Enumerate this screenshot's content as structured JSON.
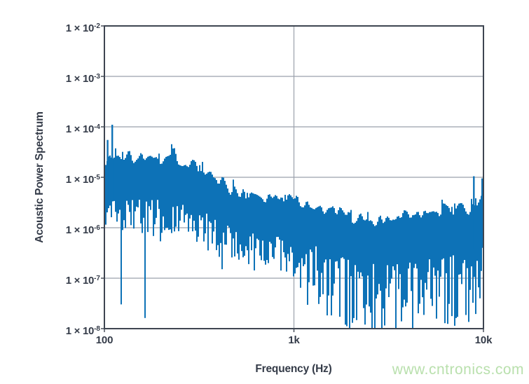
{
  "watermark": {
    "text": "www.cntronics.com",
    "color": "#b9e0ad"
  },
  "colors": {
    "series_blue": "#0d72b7",
    "text": "#343b48",
    "axis_border": "#3e4551",
    "gridline": "#9ba1ac",
    "background": "#ffffff"
  },
  "chart_data": {
    "type": "line",
    "subtype": "noisy-power-spectrum",
    "title": "",
    "xlabel": "Frequency (Hz)",
    "ylabel": "Acoustic Power Spectrum",
    "x_scale": "log",
    "y_scale": "log",
    "xlim": [
      100,
      10000
    ],
    "ylim": [
      1e-08,
      0.01
    ],
    "grid": true,
    "legend": false,
    "x_ticks": [
      {
        "value": 100,
        "label": "100"
      },
      {
        "value": 1000,
        "label": "1k"
      },
      {
        "value": 10000,
        "label": "10k"
      }
    ],
    "y_ticks": [
      {
        "value": 0.01,
        "label": "1 × 10",
        "exp": "-2"
      },
      {
        "value": 0.001,
        "label": "1 × 10",
        "exp": "-3"
      },
      {
        "value": 0.0001,
        "label": "1 × 10",
        "exp": "-4"
      },
      {
        "value": 1e-05,
        "label": "1 × 10",
        "exp": "-5"
      },
      {
        "value": 1e-06,
        "label": "1 × 10",
        "exp": "-6"
      },
      {
        "value": 1e-07,
        "label": "1 × 10",
        "exp": "-7"
      },
      {
        "value": 1e-08,
        "label": "1 × 10",
        "exp": "-8"
      }
    ],
    "series": [
      {
        "name": "acoustic-power-spectrum",
        "color": "#0d72b7",
        "envelope": [
          {
            "f": 100,
            "hi": 2.4e-05,
            "lo": 3.4e-06,
            "floor": 6.5e-07,
            "spike_p": 0.1
          },
          {
            "f": 150,
            "hi": 2.7e-05,
            "lo": 3.6e-06,
            "floor": 6e-07,
            "spike_p": 0.11
          },
          {
            "f": 230,
            "hi": 2.8e-05,
            "lo": 3.6e-06,
            "floor": 6e-07,
            "spike_p": 0.12
          },
          {
            "f": 300,
            "hi": 2e-05,
            "lo": 2.8e-06,
            "floor": 4.5e-07,
            "spike_p": 0.12
          },
          {
            "f": 400,
            "hi": 7.5e-06,
            "lo": 1.3e-06,
            "floor": 2e-07,
            "spike_p": 0.13
          },
          {
            "f": 550,
            "hi": 4.6e-06,
            "lo": 8e-07,
            "floor": 1.2e-07,
            "spike_p": 0.14
          },
          {
            "f": 800,
            "hi": 4.1e-06,
            "lo": 7e-07,
            "floor": 1e-07,
            "spike_p": 0.15
          },
          {
            "f": 1000,
            "hi": 3.6e-06,
            "lo": 6e-07,
            "floor": 6e-08,
            "spike_p": 0.17
          },
          {
            "f": 1400,
            "hi": 2.6e-06,
            "lo": 4e-07,
            "floor": 2.5e-08,
            "spike_p": 0.24
          },
          {
            "f": 2000,
            "hi": 1.7e-06,
            "lo": 2.2e-07,
            "floor": 1.3e-08,
            "spike_p": 0.32
          },
          {
            "f": 3000,
            "hi": 1.4e-06,
            "lo": 1.8e-07,
            "floor": 1.2e-08,
            "spike_p": 0.34
          },
          {
            "f": 4500,
            "hi": 1.7e-06,
            "lo": 2.2e-07,
            "floor": 1.4e-08,
            "spike_p": 0.33
          },
          {
            "f": 6500,
            "hi": 2.2e-06,
            "lo": 2.8e-07,
            "floor": 1.5e-08,
            "spike_p": 0.3
          },
          {
            "f": 9000,
            "hi": 3e-06,
            "lo": 4e-07,
            "floor": 2e-08,
            "spike_p": 0.27
          },
          {
            "f": 10000,
            "hi": 5e-06,
            "lo": 5e-07,
            "floor": 2e-08,
            "spike_p": 0.25
          }
        ],
        "peak_features": [
          {
            "f": 104,
            "v": 5.5e-05
          },
          {
            "f": 110,
            "v": 0.00011
          },
          {
            "f": 8900,
            "v": 1.05e-05
          },
          {
            "f": 9850,
            "v": 9.5e-06
          }
        ]
      }
    ]
  }
}
